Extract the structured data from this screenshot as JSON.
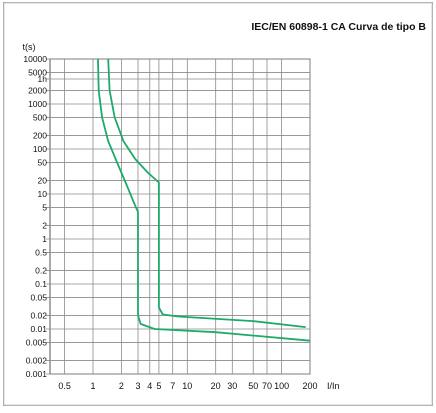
{
  "chart_data": {
    "type": "line",
    "title": "IEC/EN 60898-1 CA Curva de tipo B",
    "ylabel": "t(s)",
    "xlabel": "I/In",
    "scale": {
      "x": "log",
      "y": "log"
    },
    "grid": true,
    "xlim": [
      0.35,
      200
    ],
    "ylim": [
      0.001,
      10000
    ],
    "x_tick_labels": [
      "0.5",
      "1",
      "2",
      "3",
      "4",
      "5",
      "7",
      "10",
      "20",
      "30",
      "50",
      "70",
      "100",
      "200"
    ],
    "x_tick_values": [
      0.5,
      1,
      2,
      3,
      4,
      5,
      7,
      10,
      20,
      30,
      50,
      70,
      100,
      200
    ],
    "y_tick_labels": [
      "10000",
      "5000",
      "1h",
      "2000",
      "1000",
      "500",
      "200",
      "100",
      "50",
      "20",
      "10",
      "5",
      "2",
      "1",
      "0.5",
      "0.2",
      "0.1",
      "0.05",
      "0.02",
      "0.01",
      "0.005",
      "0.002",
      "0.001"
    ],
    "y_tick_values": [
      10000,
      5000,
      3600,
      2000,
      1000,
      500,
      200,
      100,
      50,
      20,
      10,
      5,
      2,
      1,
      0.5,
      0.2,
      0.1,
      0.05,
      0.02,
      0.01,
      0.005,
      0.002,
      0.001
    ],
    "series": [
      {
        "color": "#1daa6a",
        "points": [
          [
            1.13,
            10000
          ],
          [
            1.15,
            2000
          ],
          [
            1.25,
            500
          ],
          [
            1.45,
            150
          ],
          [
            1.8,
            50
          ],
          [
            2.3,
            15
          ],
          [
            2.8,
            5.5
          ],
          [
            3,
            4
          ],
          [
            3,
            0.02
          ],
          [
            3.2,
            0.013
          ],
          [
            4.5,
            0.01
          ],
          [
            20,
            0.0085
          ],
          [
            200,
            0.0055
          ]
        ]
      },
      {
        "color": "#1daa6a",
        "points": [
          [
            1.45,
            10000
          ],
          [
            1.5,
            2000
          ],
          [
            1.7,
            500
          ],
          [
            2.1,
            150
          ],
          [
            2.8,
            60
          ],
          [
            3.8,
            30
          ],
          [
            5,
            18
          ],
          [
            5,
            0.03
          ],
          [
            5.5,
            0.021
          ],
          [
            8,
            0.019
          ],
          [
            50,
            0.015
          ],
          [
            180,
            0.011
          ]
        ]
      }
    ]
  }
}
